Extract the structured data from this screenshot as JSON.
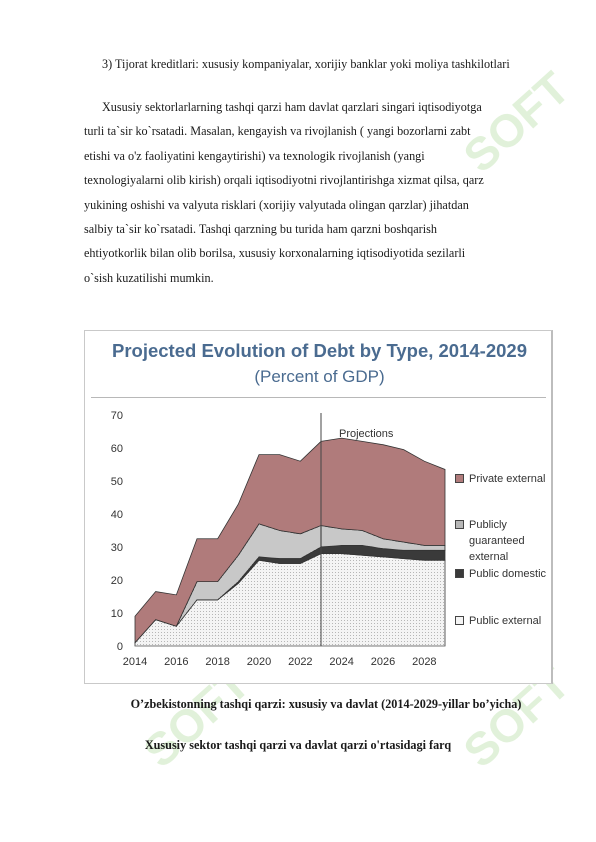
{
  "document": {
    "heading": "3) Tijorat kreditlari: xususiy kompaniyalar, xorijiy banklar yoki moliya tashkilotlari",
    "body_lines": [
      "Xususiy sektorlarlarning tashqi qarzi ham davlat qarzlari singari iqtisodiyotga",
      "turli ta`sir ko`rsatadi. Masalan, kengayish va rivojlanish ( yangi bozorlarni zabt",
      "etishi va o'z faoliyatini kengaytirishi) va texnologik rivojlanish (yangi",
      "texnologiyalarni olib kirish) orqali iqtisodiyotni rivojlantirishga xizmat qilsa, qarz",
      "yukining oshishi va valyuta risklari (xorijiy valyutada olingan qarzlar) jihatdan",
      "salbiy ta`sir ko`rsatadi. Tashqi qarzning bu turida ham qarzni boshqarish",
      "ehtiyotkorlik bilan olib borilsa, xususiy korxonalarning iqtisodiyotida sezilarli",
      "o`sish kuzatilishi mumkin."
    ],
    "caption_1": "O’zbekistonning tashqi qarzi: xususiy va davlat (2014-2029-yillar bo’yicha)",
    "caption_2": "Xususiy sektor tashqi qarzi va davlat qarzi o'rtasidagi farq",
    "watermark_text": "SOFT"
  },
  "chart_data": {
    "type": "area",
    "stacked": true,
    "title": "Projected Evolution of Debt by Type, 2014-2029",
    "subtitle": "(Percent of GDP)",
    "annotation": "Projections",
    "projection_start": 2023,
    "x": [
      2014,
      2015,
      2016,
      2017,
      2018,
      2019,
      2020,
      2021,
      2022,
      2023,
      2024,
      2025,
      2026,
      2027,
      2028,
      2029
    ],
    "x_ticks": [
      2014,
      2016,
      2018,
      2020,
      2022,
      2024,
      2026,
      2028
    ],
    "y_ticks": [
      0,
      10,
      20,
      30,
      40,
      50,
      60,
      70
    ],
    "xlim": [
      2014,
      2029
    ],
    "ylim": [
      0,
      70
    ],
    "legend_position": "right",
    "series": [
      {
        "name": "Public external",
        "values": [
          1,
          8,
          6,
          14,
          14,
          19,
          26,
          25,
          25,
          28,
          28,
          27.5,
          27,
          26.5,
          26,
          26
        ],
        "color": "#efefef",
        "pattern": "dots-light"
      },
      {
        "name": "Public domestic",
        "values": [
          0,
          0,
          0,
          0,
          0,
          0.5,
          1,
          1.5,
          1.5,
          2,
          2.5,
          3,
          2.5,
          2.5,
          3,
          3
        ],
        "color": "#3a3a3a",
        "pattern": "solid"
      },
      {
        "name": "Publicly guaranteed external",
        "values": [
          0,
          0,
          0,
          5.5,
          5.5,
          8,
          10,
          8.5,
          7.5,
          6.5,
          5,
          4.5,
          3,
          2.5,
          1.5,
          1.5
        ],
        "color": "#d8d8d8",
        "pattern": "dots-dense"
      },
      {
        "name": "Private external",
        "values": [
          8,
          8.5,
          9.5,
          13,
          13,
          15.5,
          21,
          23,
          22,
          25.5,
          27.5,
          27,
          28.5,
          28,
          25.5,
          23
        ],
        "color": "#b07b7b",
        "pattern": "solid"
      }
    ]
  }
}
